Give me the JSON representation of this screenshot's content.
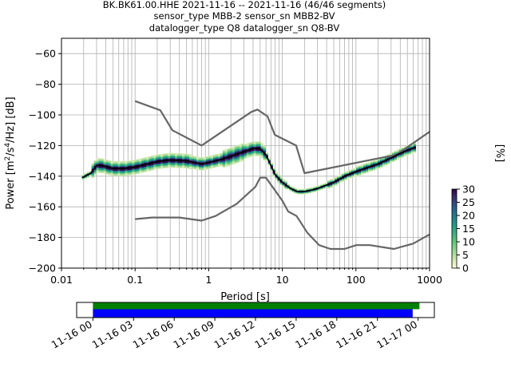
{
  "chart_data": {
    "type": "ppsd",
    "title_lines": [
      "BK.BK61.00.HHE   2021-11-16 -- 2021-11-16  (46/46 segments)",
      "sensor_type MBB-2 sensor_sn MBB2-BV",
      "datalogger_type Q8 datalogger_sn Q8-BV"
    ],
    "xlabel": "Period [s]",
    "ylabel": "Power [m²/s⁴/Hz] [dB]",
    "ylabel_parts": {
      "prefix": "Power [m",
      "exp1": "2",
      "mid": "/s",
      "exp2": "4",
      "suffix": "/Hz] [dB]"
    },
    "x_scale": "log",
    "xlim": [
      0.01,
      1000
    ],
    "ylim": [
      -200,
      -50
    ],
    "xtick_labels": [
      "0.01",
      "0.1",
      "1",
      "10",
      "100",
      "1000"
    ],
    "xtick_values": [
      0.01,
      0.1,
      1,
      10,
      100,
      1000
    ],
    "ytick_values": [
      -200,
      -180,
      -160,
      -140,
      -120,
      -100,
      -80,
      -60
    ],
    "ytick_labels": [
      "−200",
      "−180",
      "−160",
      "−140",
      "−120",
      "−100",
      "−80",
      "−60"
    ],
    "grid": true,
    "colorbar": {
      "label": "[%]",
      "range": [
        0,
        30
      ],
      "tick_values": [
        0,
        5,
        10,
        15,
        20,
        25,
        30
      ],
      "tick_labels": [
        "0",
        "5",
        "10",
        "15",
        "20",
        "25",
        "30"
      ]
    },
    "series": [
      {
        "role": "noise-model-high",
        "color": "#666666",
        "points": [
          [
            0.1,
            -91
          ],
          [
            0.22,
            -97
          ],
          [
            0.32,
            -110
          ],
          [
            0.8,
            -120
          ],
          [
            3.8,
            -98
          ],
          [
            4.6,
            -96.5
          ],
          [
            6.3,
            -101
          ],
          [
            7.9,
            -113
          ],
          [
            15.4,
            -120
          ],
          [
            20,
            -138
          ],
          [
            354,
            -126
          ],
          [
            1000,
            -111
          ]
        ]
      },
      {
        "role": "noise-model-low",
        "color": "#666666",
        "points": [
          [
            0.1,
            -168
          ],
          [
            0.17,
            -167
          ],
          [
            0.4,
            -167
          ],
          [
            0.8,
            -169
          ],
          [
            1.24,
            -166
          ],
          [
            2.4,
            -158
          ],
          [
            4.3,
            -147
          ],
          [
            5.0,
            -141
          ],
          [
            6.0,
            -141
          ],
          [
            10,
            -156
          ],
          [
            12,
            -163
          ],
          [
            15.6,
            -166
          ],
          [
            21.9,
            -177
          ],
          [
            31.6,
            -185
          ],
          [
            45,
            -187.5
          ],
          [
            70,
            -187.5
          ],
          [
            101,
            -185
          ],
          [
            154,
            -185
          ],
          [
            328,
            -187.5
          ],
          [
            600,
            -184
          ],
          [
            1000,
            -178
          ]
        ]
      },
      {
        "role": "mean",
        "color": "#000000",
        "points": [
          [
            0.019,
            -141
          ],
          [
            0.025,
            -138
          ],
          [
            0.03,
            -133
          ],
          [
            0.035,
            -133
          ],
          [
            0.05,
            -135
          ],
          [
            0.07,
            -135
          ],
          [
            0.1,
            -134
          ],
          [
            0.15,
            -132
          ],
          [
            0.2,
            -130.5
          ],
          [
            0.3,
            -129.5
          ],
          [
            0.5,
            -130
          ],
          [
            0.8,
            -132
          ],
          [
            1.0,
            -131
          ],
          [
            1.5,
            -129
          ],
          [
            2.0,
            -127
          ],
          [
            3.0,
            -124
          ],
          [
            4.0,
            -122
          ],
          [
            5.0,
            -122
          ],
          [
            6.0,
            -126
          ],
          [
            7.0,
            -133
          ],
          [
            8.0,
            -139
          ],
          [
            10,
            -144
          ],
          [
            13,
            -148
          ],
          [
            16,
            -150
          ],
          [
            20,
            -150
          ],
          [
            25,
            -149
          ],
          [
            30,
            -148
          ],
          [
            50,
            -144
          ],
          [
            70,
            -140
          ],
          [
            100,
            -137
          ],
          [
            150,
            -134
          ],
          [
            200,
            -132
          ],
          [
            300,
            -128
          ],
          [
            400,
            -125
          ],
          [
            500,
            -123
          ],
          [
            650,
            -121
          ]
        ]
      }
    ],
    "time_bar": {
      "tick_labels": [
        "11-16 00",
        "11-16 03",
        "11-16 06",
        "11-16 09",
        "11-16 12",
        "11-16 15",
        "11-16 18",
        "11-16 21",
        "11-17 00"
      ],
      "tick_hours": [
        0,
        3,
        6,
        9,
        12,
        15,
        18,
        21,
        24
      ],
      "range_hours": [
        -1.2,
        25.2
      ],
      "spans": [
        {
          "color": "#008000",
          "start_hour": 0,
          "end_hour": 24.1
        },
        {
          "color": "#0000ff",
          "start_hour": 0,
          "end_hour": 23.6
        }
      ]
    }
  }
}
